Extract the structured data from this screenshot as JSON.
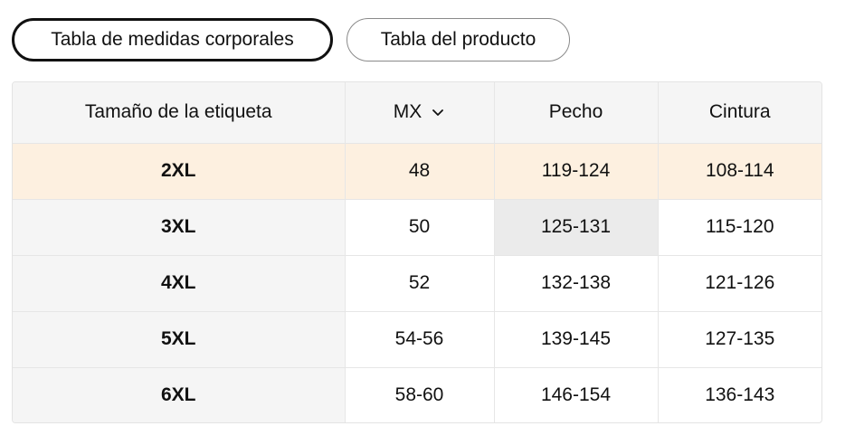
{
  "tabs": [
    {
      "label": "Tabla de medidas corporales",
      "active": true
    },
    {
      "label": "Tabla del producto",
      "active": false
    }
  ],
  "table": {
    "headers": {
      "size": "Tamaño de la etiqueta",
      "region": "MX",
      "region_icon": "chevron-down-icon",
      "chest": "Pecho",
      "waist": "Cintura"
    },
    "rows": [
      {
        "size": "2XL",
        "region": "48",
        "chest": "119-124",
        "waist": "108-114"
      },
      {
        "size": "3XL",
        "region": "50",
        "chest": "125-131",
        "waist": "115-120"
      },
      {
        "size": "4XL",
        "region": "52",
        "chest": "132-138",
        "waist": "121-126"
      },
      {
        "size": "5XL",
        "region": "54-56",
        "chest": "139-145",
        "waist": "127-135"
      },
      {
        "size": "6XL",
        "region": "58-60",
        "chest": "146-154",
        "waist": "136-143"
      }
    ]
  },
  "colors": {
    "highlight_row": "#fdf0e0",
    "header_bg": "#f5f5f5",
    "hover_cell": "#ebebeb",
    "active_border": "#111111"
  }
}
